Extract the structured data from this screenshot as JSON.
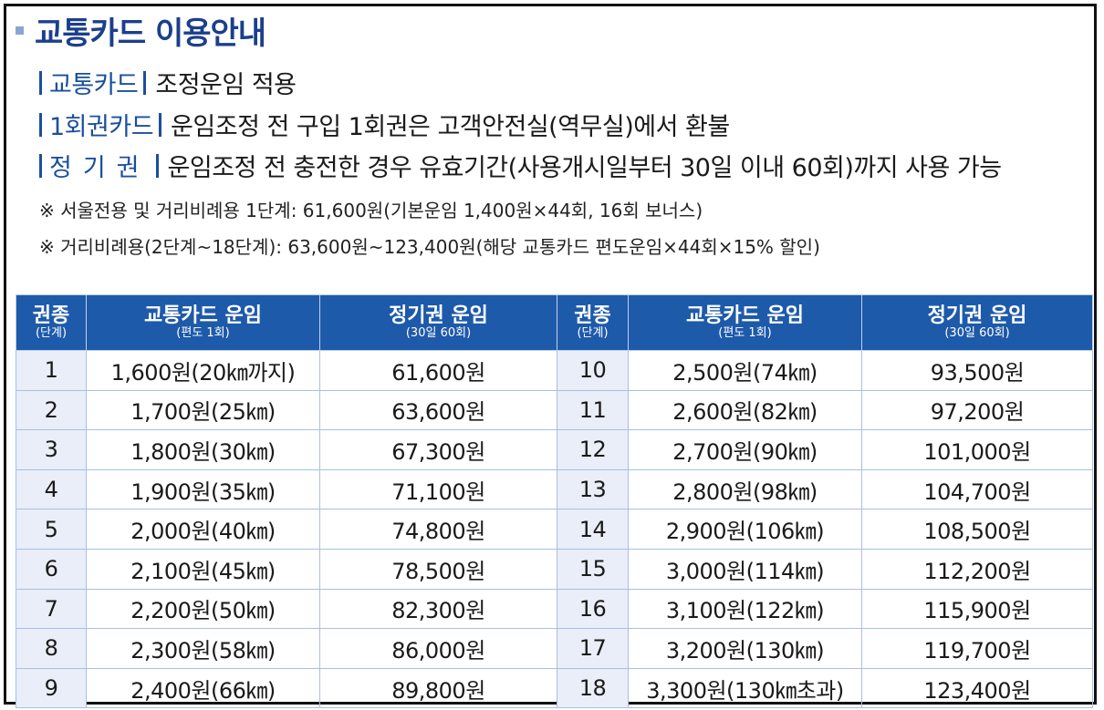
{
  "title": "교통카드 이용안내",
  "info_lines": [
    {
      "tag": "교통카드",
      "text": "조정운임 적용"
    },
    {
      "tag": "1회권카드",
      "text": "운임조정 전 구입 1회권은 고객안전실(역무실)에서 환불"
    },
    {
      "tag": "정기권",
      "text": "운임조정 전 충전한 경우 유효기간(사용개시일부터 30일 이내 60회)까지 사용 가능"
    }
  ],
  "notes": [
    "※ 서울전용 및 거리비례용 1단계: 61,600원(기본운임 1,400원×44회, 16회 보너스)",
    "※ 거리비례용(2단계~18단계): 63,600원~123,400원(해당 교통카드 편도운임×44회×15% 할인)"
  ],
  "table": {
    "headers": {
      "grade": "권종",
      "grade_sub": "(단계)",
      "card": "교통카드 운임",
      "card_sub": "(편도 1회)",
      "pass": "정기권 운임",
      "pass_sub": "(30일 60회)"
    },
    "rows": [
      {
        "g1": "1",
        "c1": "1,600원(20㎞까지)",
        "p1": "61,600원",
        "g2": "10",
        "c2": "2,500원(74㎞)",
        "p2": "93,500원"
      },
      {
        "g1": "2",
        "c1": "1,700원(25㎞)",
        "p1": "63,600원",
        "g2": "11",
        "c2": "2,600원(82㎞)",
        "p2": "97,200원"
      },
      {
        "g1": "3",
        "c1": "1,800원(30㎞)",
        "p1": "67,300원",
        "g2": "12",
        "c2": "2,700원(90㎞)",
        "p2": "101,000원"
      },
      {
        "g1": "4",
        "c1": "1,900원(35㎞)",
        "p1": "71,100원",
        "g2": "13",
        "c2": "2,800원(98㎞)",
        "p2": "104,700원"
      },
      {
        "g1": "5",
        "c1": "2,000원(40㎞)",
        "p1": "74,800원",
        "g2": "14",
        "c2": "2,900원(106㎞)",
        "p2": "108,500원"
      },
      {
        "g1": "6",
        "c1": "2,100원(45㎞)",
        "p1": "78,500원",
        "g2": "15",
        "c2": "3,000원(114㎞)",
        "p2": "112,200원"
      },
      {
        "g1": "7",
        "c1": "2,200원(50㎞)",
        "p1": "82,300원",
        "g2": "16",
        "c2": "3,100원(122㎞)",
        "p2": "115,900원"
      },
      {
        "g1": "8",
        "c1": "2,300원(58㎞)",
        "p1": "86,000원",
        "g2": "17",
        "c2": "3,200원(130㎞)",
        "p2": "119,700원"
      },
      {
        "g1": "9",
        "c1": "2,400원(66㎞)",
        "p1": "89,800원",
        "g2": "18",
        "c2": "3,300원(130㎞초과)",
        "p2": "123,400원"
      }
    ]
  }
}
